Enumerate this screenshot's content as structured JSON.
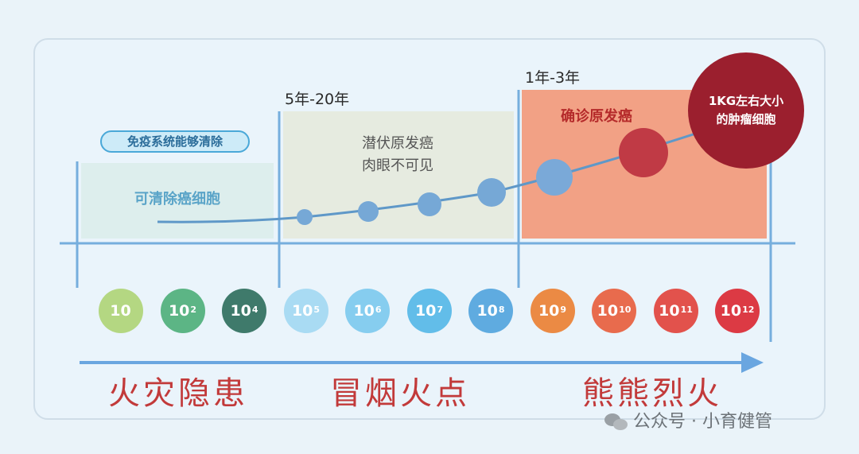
{
  "zones": {
    "clearable": {
      "badge": "免疫系统能够清除",
      "text": "可清除癌细胞"
    },
    "latent": {
      "time_label": "5年-20年",
      "title": "潜伏原发癌",
      "subtitle": "肉眼不可见"
    },
    "diagnosed": {
      "time_label": "1年-3年",
      "title": "确诊原发癌"
    }
  },
  "tumor_circle": {
    "line1": "1KG左右大小",
    "line2": "的肿瘤细胞"
  },
  "cell_counts": [
    {
      "base": "10",
      "exp": "",
      "color": "#b4d782"
    },
    {
      "base": "10",
      "exp": "2",
      "color": "#5cb585"
    },
    {
      "base": "10",
      "exp": "4",
      "color": "#3f7a6b"
    },
    {
      "base": "10",
      "exp": "5",
      "color": "#a9dbf3"
    },
    {
      "base": "10",
      "exp": "6",
      "color": "#86cdef"
    },
    {
      "base": "10",
      "exp": "7",
      "color": "#62bde9"
    },
    {
      "base": "10",
      "exp": "8",
      "color": "#5fabe0"
    },
    {
      "base": "10",
      "exp": "9",
      "color": "#eb8a44"
    },
    {
      "base": "10",
      "exp": "10",
      "color": "#e86b4d"
    },
    {
      "base": "10",
      "exp": "11",
      "color": "#e2524c"
    },
    {
      "base": "10",
      "exp": "12",
      "color": "#dc3a44"
    }
  ],
  "stages": [
    "火灾隐患",
    "冒烟火点",
    "熊熊烈火"
  ],
  "watermark": "公众号 · 小育健管",
  "colors": {
    "axis": "#76aedd",
    "curve": "#5f98c8",
    "dot": "#76a8d6",
    "accent_red": "#c23a3a",
    "tumor": "#9b1f2e"
  }
}
